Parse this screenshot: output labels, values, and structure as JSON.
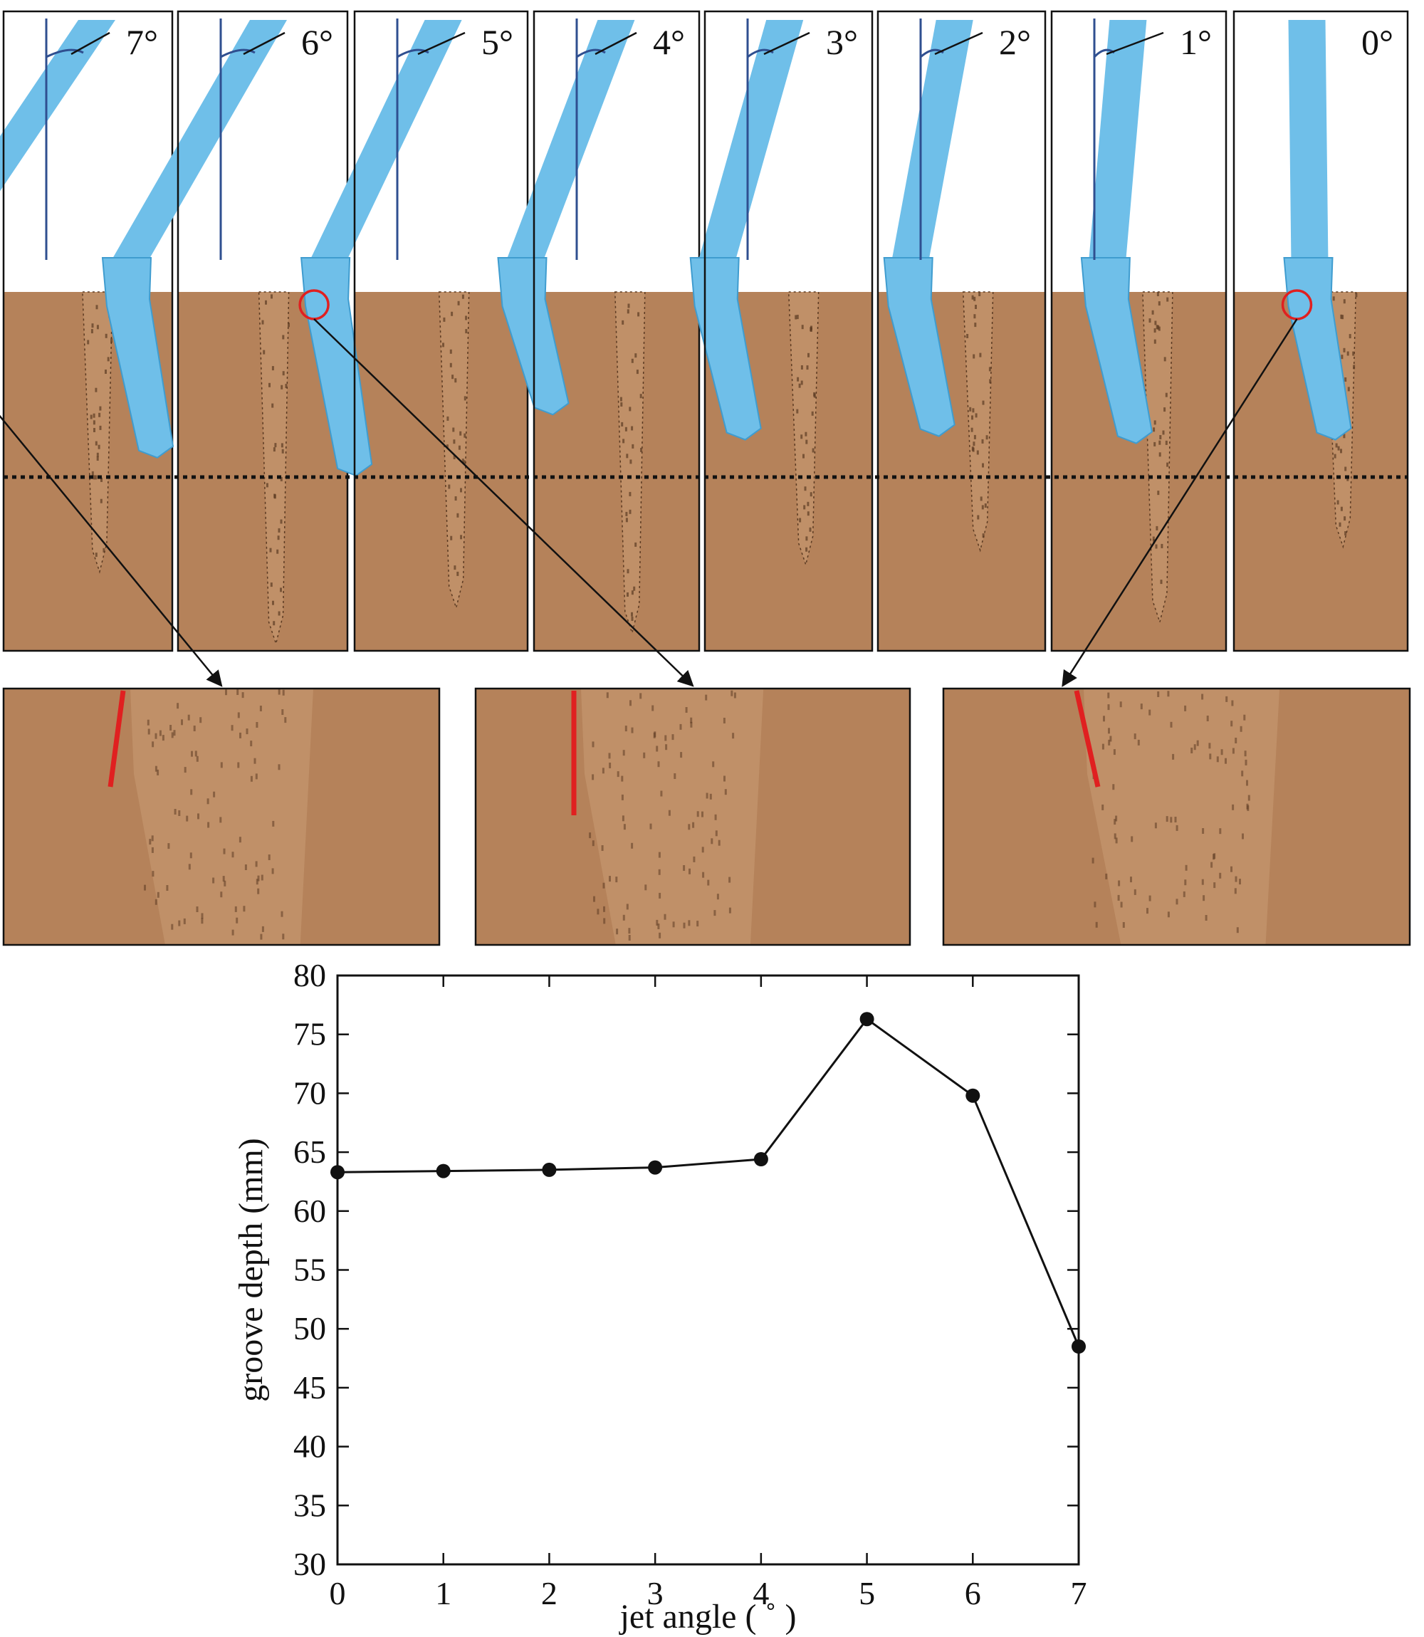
{
  "panels": [
    {
      "angle": 7,
      "label": "7°",
      "jet_depth": 0.26,
      "groove_depth": 0.78,
      "circled": true
    },
    {
      "angle": 6,
      "label": "6°",
      "jet_depth": 0.45,
      "groove_depth": 0.98,
      "circled": false
    },
    {
      "angle": 5,
      "label": "5°",
      "jet_depth": 0.5,
      "groove_depth": 0.88,
      "circled": true
    },
    {
      "angle": 4,
      "label": "4°",
      "jet_depth": 0.33,
      "groove_depth": 0.95,
      "circled": false
    },
    {
      "angle": 3,
      "label": "3°",
      "jet_depth": 0.4,
      "groove_depth": 0.76,
      "circled": false
    },
    {
      "angle": 2,
      "label": "2°",
      "jet_depth": 0.39,
      "groove_depth": 0.72,
      "circled": false
    },
    {
      "angle": 1,
      "label": "1°",
      "jet_depth": 0.41,
      "groove_depth": 0.92,
      "circled": false
    },
    {
      "angle": 0,
      "label": "0°",
      "jet_depth": 0.4,
      "groove_depth": 0.71,
      "circled": true
    }
  ],
  "colors": {
    "jet": "#6fbfe9",
    "jet_dark": "#3f9ccf",
    "soil": "#b5825a",
    "groove": "#c09068",
    "groove_speck": "#5b3a22",
    "marker": "#e02020",
    "angle_line": "#2f4f90",
    "reference": "#111111"
  },
  "chart_data": {
    "type": "line",
    "x": [
      0,
      1,
      2,
      3,
      4,
      5,
      6,
      7
    ],
    "y": [
      63.3,
      63.4,
      63.5,
      63.7,
      64.4,
      76.3,
      69.8,
      48.5
    ],
    "xlabel": "jet angle ( ˚ )",
    "ylabel": "groove depth (mm)",
    "xlim": [
      0,
      7
    ],
    "ylim": [
      30,
      80
    ],
    "xticks": [
      0,
      1,
      2,
      3,
      4,
      5,
      6,
      7
    ],
    "yticks": [
      30,
      35,
      40,
      45,
      50,
      55,
      60,
      65,
      70,
      75,
      80
    ],
    "grid": false,
    "marker": "circle"
  }
}
